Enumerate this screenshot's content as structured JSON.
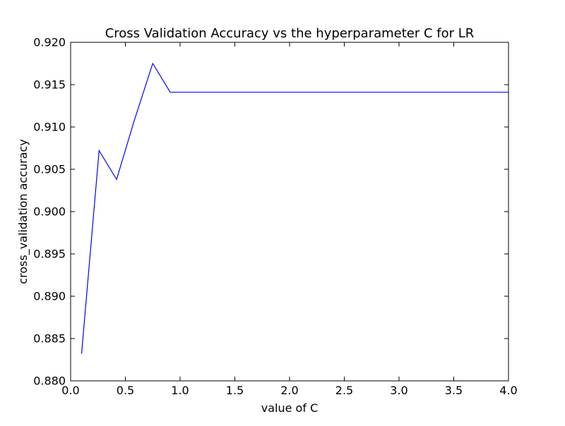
{
  "chart_data": {
    "type": "line",
    "title": "Cross Validation Accuracy vs the hyperparameter C for LR",
    "xlabel": "value of C",
    "ylabel": "cross_validation accuracy",
    "xlim": [
      0.0,
      4.0
    ],
    "ylim": [
      0.88,
      0.92
    ],
    "xticks": [
      "0.0",
      "0.5",
      "1.0",
      "1.5",
      "2.0",
      "2.5",
      "3.0",
      "3.5",
      "4.0"
    ],
    "yticks": [
      "0.880",
      "0.885",
      "0.890",
      "0.895",
      "0.900",
      "0.905",
      "0.910",
      "0.915",
      "0.920"
    ],
    "grid": false,
    "series": [
      {
        "color": "#0000ff",
        "x": [
          0.1,
          0.26,
          0.42,
          0.58,
          0.75,
          0.91,
          4.0
        ],
        "y": [
          0.8832,
          0.9072,
          0.9038,
          0.9107,
          0.9175,
          0.9141,
          0.9141
        ]
      }
    ]
  }
}
